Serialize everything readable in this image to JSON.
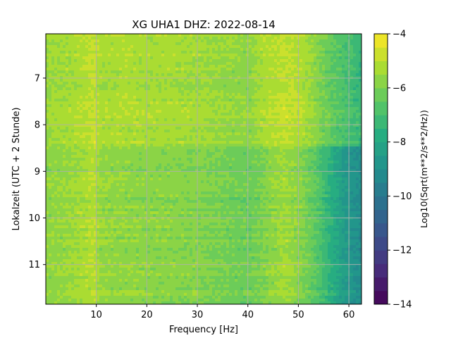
{
  "chart_data": {
    "type": "heatmap",
    "title": "XG UHA1  DHZ: 2022-08-14",
    "xlabel": "Frequency [Hz]",
    "ylabel": "Lokalzeit (UTC + 2 Stunde)",
    "xlim": [
      0,
      62.5
    ],
    "ylim": [
      11.85,
      6.05
    ],
    "y_inverted": true,
    "x_ticks": [
      10,
      20,
      30,
      40,
      50,
      60
    ],
    "x_tick_labels": [
      "10",
      "20",
      "30",
      "40",
      "50",
      "60"
    ],
    "y_ticks": [
      7,
      8,
      9,
      10,
      11
    ],
    "y_tick_labels": [
      "7",
      "8",
      "9",
      "10",
      "11"
    ],
    "grid": true,
    "colormap": "viridis",
    "colorbar": {
      "label": "Log10(Sqrt(m**2/s**2/Hz))",
      "range": [
        -14,
        -4
      ],
      "ticks": [
        -14,
        -12,
        -10,
        -8,
        -6,
        -4
      ],
      "tick_labels": [
        "−14",
        "−12",
        "−10",
        "−8",
        "−6",
        "−4"
      ]
    },
    "value_profile_by_frequency": {
      "frequency_hz": [
        0,
        5,
        9.5,
        10.5,
        15,
        20,
        25,
        30,
        35,
        40,
        43,
        47,
        50,
        53,
        56,
        59,
        62.5
      ],
      "value_before_8_4h": [
        -5.5,
        -5.3,
        -4.9,
        -5.3,
        -5.2,
        -5.3,
        -5.3,
        -5.4,
        -5.6,
        -5.7,
        -5.2,
        -4.9,
        -5.1,
        -5.7,
        -6.4,
        -6.9,
        -7.4
      ],
      "value_after_8_4h": [
        -5.7,
        -5.5,
        -5.1,
        -5.6,
        -5.7,
        -5.8,
        -5.8,
        -5.9,
        -6.1,
        -6.3,
        -5.9,
        -5.4,
        -5.8,
        -6.5,
        -7.6,
        -8.6,
        -9.2
      ]
    }
  }
}
